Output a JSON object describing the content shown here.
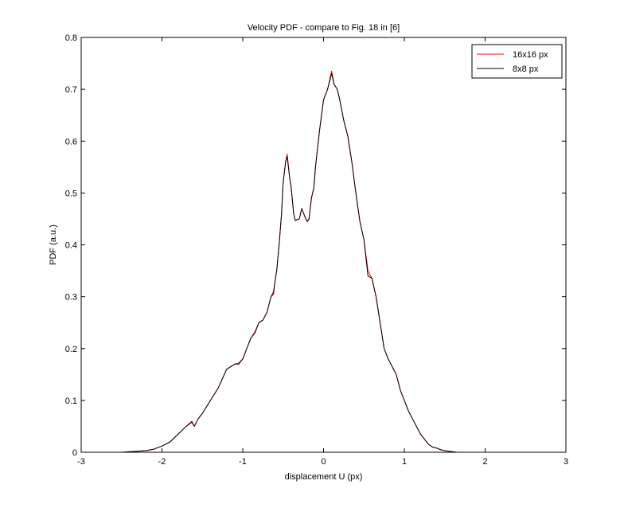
{
  "chart_data": {
    "type": "line",
    "title": "Velocity PDF - compare to Fig. 18 in [6]",
    "xlabel": "displacement U (px)",
    "ylabel": "PDF (a.u.)",
    "xlim": [
      -3,
      3
    ],
    "ylim": [
      0,
      0.8
    ],
    "xticks": [
      "-3",
      "-2",
      "-1",
      "0",
      "1",
      "2",
      "3"
    ],
    "yticks": [
      "0",
      "0.1",
      "0.2",
      "0.3",
      "0.4",
      "0.5",
      "0.6",
      "0.7",
      "0.8"
    ],
    "grid": false,
    "legend_position": "top-right",
    "series": [
      {
        "name": "16x16 px",
        "color": "#ff0000",
        "x": [
          -2.5,
          -2.2,
          -2.1,
          -2.0,
          -1.9,
          -1.8,
          -1.7,
          -1.63,
          -1.6,
          -1.55,
          -1.5,
          -1.4,
          -1.3,
          -1.2,
          -1.1,
          -1.05,
          -1.0,
          -0.95,
          -0.9,
          -0.85,
          -0.8,
          -0.75,
          -0.7,
          -0.65,
          -0.62,
          -0.6,
          -0.58,
          -0.55,
          -0.52,
          -0.5,
          -0.47,
          -0.45,
          -0.42,
          -0.4,
          -0.37,
          -0.35,
          -0.3,
          -0.27,
          -0.25,
          -0.22,
          -0.2,
          -0.18,
          -0.15,
          -0.12,
          -0.1,
          -0.05,
          0.0,
          0.05,
          0.1,
          0.13,
          0.17,
          0.2,
          0.25,
          0.3,
          0.35,
          0.4,
          0.45,
          0.5,
          0.55,
          0.6,
          0.65,
          0.7,
          0.75,
          0.8,
          0.85,
          0.9,
          0.95,
          1.0,
          1.05,
          1.1,
          1.15,
          1.2,
          1.25,
          1.3,
          1.35,
          1.4,
          1.45,
          1.5,
          1.55,
          1.6,
          1.65,
          1.7,
          1.75,
          1.8,
          1.9
        ],
        "y": [
          0.0,
          0.003,
          0.006,
          0.012,
          0.02,
          0.035,
          0.05,
          0.06,
          0.05,
          0.065,
          0.075,
          0.1,
          0.125,
          0.16,
          0.17,
          0.172,
          0.18,
          0.2,
          0.22,
          0.232,
          0.25,
          0.255,
          0.27,
          0.3,
          0.31,
          0.33,
          0.35,
          0.4,
          0.46,
          0.52,
          0.56,
          0.575,
          0.53,
          0.51,
          0.46,
          0.447,
          0.45,
          0.47,
          0.462,
          0.45,
          0.445,
          0.45,
          0.49,
          0.51,
          0.55,
          0.62,
          0.68,
          0.7,
          0.735,
          0.71,
          0.7,
          0.68,
          0.64,
          0.61,
          0.56,
          0.5,
          0.445,
          0.41,
          0.35,
          0.335,
          0.3,
          0.25,
          0.2,
          0.18,
          0.165,
          0.15,
          0.12,
          0.1,
          0.08,
          0.065,
          0.05,
          0.035,
          0.025,
          0.015,
          0.01,
          0.008,
          0.005,
          0.003,
          0.002,
          0.001,
          0.0,
          0.0,
          0.0,
          0.0,
          0.0
        ]
      },
      {
        "name": "8x8 px",
        "color": "#000000",
        "x": [
          -2.5,
          -2.2,
          -2.1,
          -2.0,
          -1.9,
          -1.8,
          -1.7,
          -1.63,
          -1.6,
          -1.55,
          -1.5,
          -1.4,
          -1.3,
          -1.2,
          -1.1,
          -1.05,
          -1.0,
          -0.95,
          -0.9,
          -0.85,
          -0.8,
          -0.75,
          -0.7,
          -0.65,
          -0.62,
          -0.6,
          -0.58,
          -0.55,
          -0.52,
          -0.5,
          -0.47,
          -0.45,
          -0.42,
          -0.4,
          -0.37,
          -0.35,
          -0.3,
          -0.27,
          -0.25,
          -0.22,
          -0.2,
          -0.18,
          -0.15,
          -0.12,
          -0.1,
          -0.05,
          0.0,
          0.05,
          0.1,
          0.13,
          0.17,
          0.2,
          0.25,
          0.3,
          0.35,
          0.4,
          0.45,
          0.5,
          0.55,
          0.6,
          0.65,
          0.7,
          0.75,
          0.8,
          0.85,
          0.9,
          0.95,
          1.0,
          1.05,
          1.1,
          1.15,
          1.2,
          1.25,
          1.3,
          1.35,
          1.4,
          1.45,
          1.5,
          1.55,
          1.6,
          1.65,
          1.7,
          1.75,
          1.8,
          1.9
        ],
        "y": [
          0.0,
          0.003,
          0.006,
          0.012,
          0.02,
          0.035,
          0.05,
          0.058,
          0.05,
          0.065,
          0.075,
          0.1,
          0.125,
          0.16,
          0.17,
          0.17,
          0.18,
          0.2,
          0.22,
          0.23,
          0.25,
          0.255,
          0.27,
          0.3,
          0.305,
          0.33,
          0.35,
          0.4,
          0.46,
          0.52,
          0.56,
          0.57,
          0.53,
          0.51,
          0.46,
          0.447,
          0.45,
          0.47,
          0.462,
          0.45,
          0.445,
          0.45,
          0.49,
          0.51,
          0.55,
          0.62,
          0.68,
          0.7,
          0.73,
          0.71,
          0.7,
          0.68,
          0.64,
          0.61,
          0.56,
          0.5,
          0.445,
          0.41,
          0.34,
          0.335,
          0.3,
          0.25,
          0.2,
          0.18,
          0.165,
          0.15,
          0.12,
          0.1,
          0.08,
          0.065,
          0.05,
          0.035,
          0.025,
          0.015,
          0.01,
          0.008,
          0.005,
          0.003,
          0.002,
          0.001,
          0.0,
          0.0,
          0.0,
          0.0,
          0.0
        ]
      }
    ]
  }
}
